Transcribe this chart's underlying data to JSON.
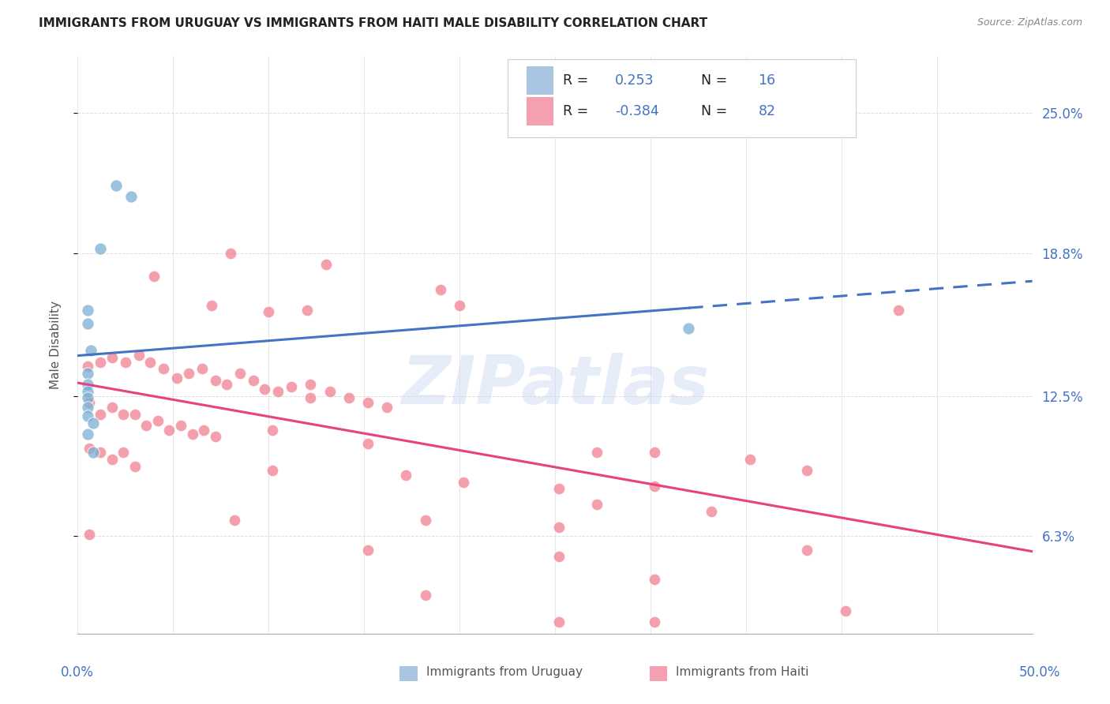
{
  "title": "IMMIGRANTS FROM URUGUAY VS IMMIGRANTS FROM HAITI MALE DISABILITY CORRELATION CHART",
  "source": "Source: ZipAtlas.com",
  "ylabel": "Male Disability",
  "ytick_labels": [
    "6.3%",
    "12.5%",
    "18.8%",
    "25.0%"
  ],
  "ytick_values": [
    0.063,
    0.125,
    0.188,
    0.25
  ],
  "xmin": 0.0,
  "xmax": 0.5,
  "ymin": 0.02,
  "ymax": 0.275,
  "uruguay_color": "#7bafd4",
  "haiti_color": "#f08090",
  "uruguay_scatter": [
    [
      0.02,
      0.218
    ],
    [
      0.028,
      0.213
    ],
    [
      0.012,
      0.19
    ],
    [
      0.005,
      0.163
    ],
    [
      0.005,
      0.157
    ],
    [
      0.005,
      0.135
    ],
    [
      0.005,
      0.13
    ],
    [
      0.005,
      0.127
    ],
    [
      0.005,
      0.124
    ],
    [
      0.005,
      0.12
    ],
    [
      0.005,
      0.116
    ],
    [
      0.008,
      0.113
    ],
    [
      0.005,
      0.108
    ],
    [
      0.008,
      0.1
    ],
    [
      0.007,
      0.145
    ],
    [
      0.32,
      0.155
    ]
  ],
  "haiti_scatter": [
    [
      0.04,
      0.178
    ],
    [
      0.08,
      0.188
    ],
    [
      0.13,
      0.183
    ],
    [
      0.07,
      0.165
    ],
    [
      0.1,
      0.162
    ],
    [
      0.12,
      0.163
    ],
    [
      0.2,
      0.165
    ],
    [
      0.19,
      0.172
    ],
    [
      0.43,
      0.163
    ],
    [
      0.005,
      0.138
    ],
    [
      0.012,
      0.14
    ],
    [
      0.018,
      0.142
    ],
    [
      0.025,
      0.14
    ],
    [
      0.032,
      0.143
    ],
    [
      0.038,
      0.14
    ],
    [
      0.045,
      0.137
    ],
    [
      0.052,
      0.133
    ],
    [
      0.058,
      0.135
    ],
    [
      0.065,
      0.137
    ],
    [
      0.072,
      0.132
    ],
    [
      0.078,
      0.13
    ],
    [
      0.085,
      0.135
    ],
    [
      0.092,
      0.132
    ],
    [
      0.098,
      0.128
    ],
    [
      0.105,
      0.127
    ],
    [
      0.112,
      0.129
    ],
    [
      0.122,
      0.13
    ],
    [
      0.122,
      0.124
    ],
    [
      0.132,
      0.127
    ],
    [
      0.142,
      0.124
    ],
    [
      0.152,
      0.122
    ],
    [
      0.162,
      0.12
    ],
    [
      0.006,
      0.122
    ],
    [
      0.012,
      0.117
    ],
    [
      0.018,
      0.12
    ],
    [
      0.024,
      0.117
    ],
    [
      0.03,
      0.117
    ],
    [
      0.036,
      0.112
    ],
    [
      0.042,
      0.114
    ],
    [
      0.048,
      0.11
    ],
    [
      0.054,
      0.112
    ],
    [
      0.06,
      0.108
    ],
    [
      0.066,
      0.11
    ],
    [
      0.072,
      0.107
    ],
    [
      0.102,
      0.11
    ],
    [
      0.152,
      0.104
    ],
    [
      0.272,
      0.1
    ],
    [
      0.302,
      0.1
    ],
    [
      0.352,
      0.097
    ],
    [
      0.006,
      0.102
    ],
    [
      0.012,
      0.1
    ],
    [
      0.018,
      0.097
    ],
    [
      0.024,
      0.1
    ],
    [
      0.03,
      0.094
    ],
    [
      0.102,
      0.092
    ],
    [
      0.172,
      0.09
    ],
    [
      0.202,
      0.087
    ],
    [
      0.252,
      0.084
    ],
    [
      0.302,
      0.085
    ],
    [
      0.382,
      0.092
    ],
    [
      0.272,
      0.077
    ],
    [
      0.332,
      0.074
    ],
    [
      0.082,
      0.07
    ],
    [
      0.182,
      0.07
    ],
    [
      0.252,
      0.067
    ],
    [
      0.006,
      0.064
    ],
    [
      0.152,
      0.057
    ],
    [
      0.252,
      0.054
    ],
    [
      0.382,
      0.057
    ],
    [
      0.302,
      0.044
    ],
    [
      0.182,
      0.037
    ],
    [
      0.252,
      0.025
    ],
    [
      0.302,
      0.025
    ],
    [
      0.402,
      0.03
    ]
  ],
  "uruguay_line_color": "#4472c4",
  "haiti_line_color": "#e84080",
  "watermark_text": "ZIPatlas",
  "background_color": "#ffffff",
  "grid_color": "#dddddd",
  "title_color": "#222222",
  "right_ytick_color": "#4472c4",
  "legend_r_color": "#222222",
  "legend_val_color": "#4472c4"
}
